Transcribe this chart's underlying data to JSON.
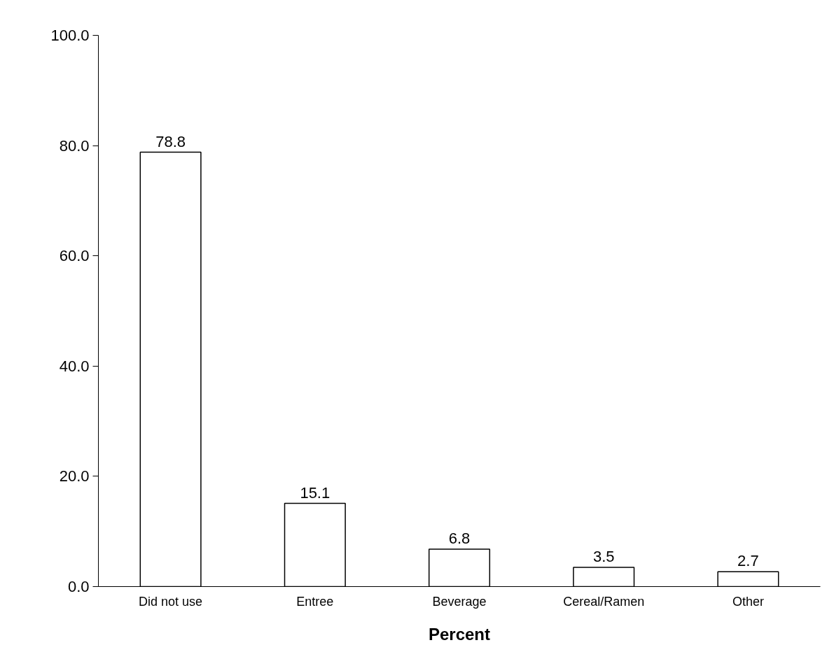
{
  "chart_data": {
    "type": "bar",
    "xlabel": "Percent",
    "categories": [
      "Did not use",
      "Entree",
      "Beverage",
      "Cereal/Ramen",
      "Other"
    ],
    "values": [
      78.8,
      15.1,
      6.8,
      3.5,
      2.7
    ],
    "color": "#ffffff",
    "ylim": [
      0,
      100
    ],
    "yticks": [
      {
        "value": 0,
        "label": "0.0"
      },
      {
        "value": 20,
        "label": "20.0"
      },
      {
        "value": 40,
        "label": "40.0"
      },
      {
        "value": 60,
        "label": "60.0"
      },
      {
        "value": 80,
        "label": "80.0"
      },
      {
        "value": 100,
        "label": "100.0"
      }
    ],
    "data_labels": true
  }
}
